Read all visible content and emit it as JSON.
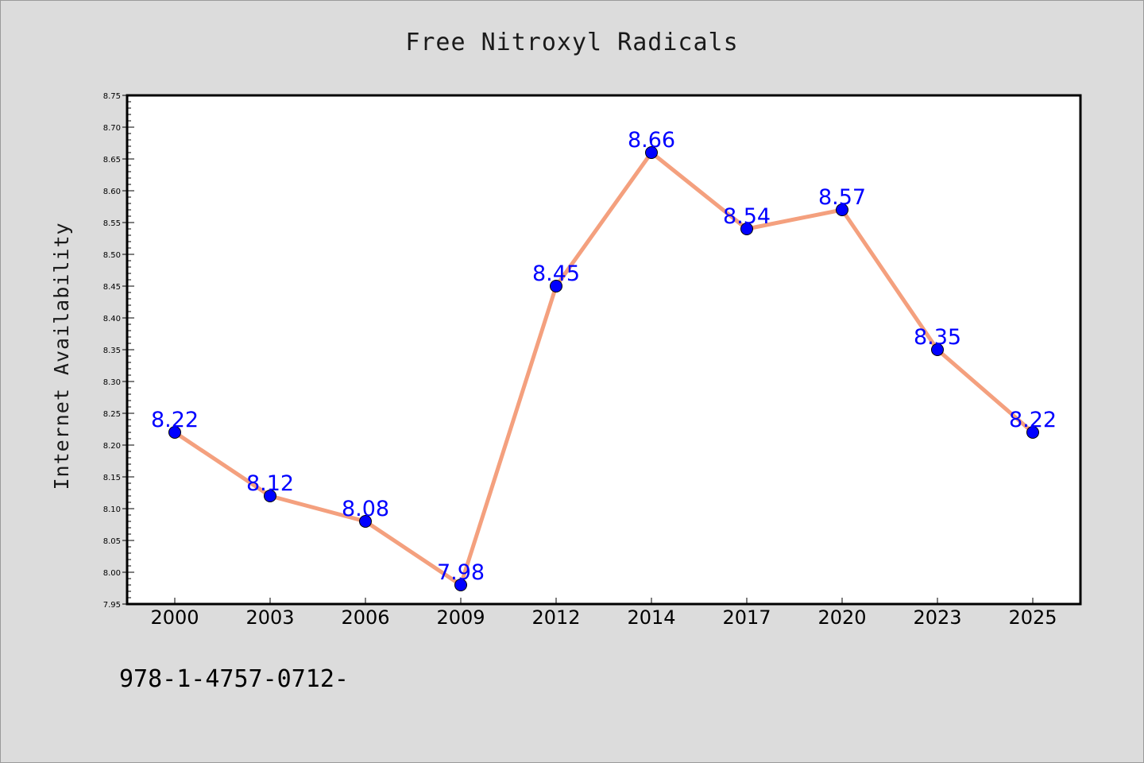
{
  "colors": {
    "background": "#dcdcdc",
    "plot_background": "#ffffff",
    "line": "#f4a07e",
    "marker": "#0000ff",
    "data_label": "#0000ff"
  },
  "footer_code": "978-1-4757-0712-",
  "chart_data": {
    "type": "line",
    "title": "Free Nitroxyl Radicals",
    "xlabel": "",
    "ylabel": "Internet Availability",
    "categories": [
      "2000",
      "2003",
      "2006",
      "2009",
      "2012",
      "2014",
      "2017",
      "2020",
      "2023",
      "2025"
    ],
    "series": [
      {
        "values": [
          8.22,
          8.12,
          8.08,
          7.98,
          8.45,
          8.66,
          8.54,
          8.57,
          8.35,
          8.22
        ],
        "labels": [
          "8.22",
          "8.12",
          "8.08",
          "7.98",
          "8.45",
          "8.66",
          "8.54",
          "8.57",
          "8.35",
          "8.22"
        ]
      }
    ],
    "ylim": [
      7.95,
      8.75
    ],
    "yticks": [
      "7.95",
      "8.00",
      "8.05",
      "8.10",
      "8.15",
      "8.20",
      "8.25",
      "8.30",
      "8.35",
      "8.40",
      "8.45",
      "8.50",
      "8.55",
      "8.60",
      "8.65",
      "8.70",
      "8.75"
    ],
    "grid": false,
    "legend": "none",
    "markers": true,
    "data_labels": true
  }
}
